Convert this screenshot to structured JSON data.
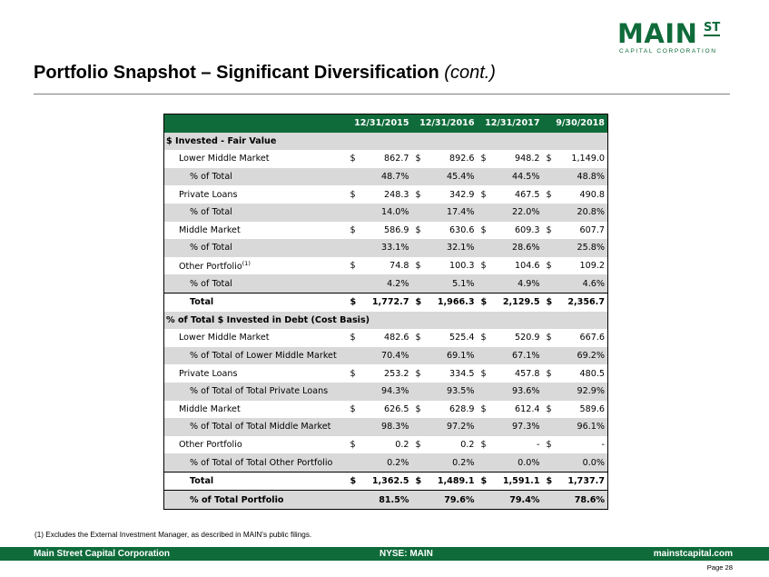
{
  "logo": {
    "main": "MAIN",
    "st": "ST",
    "sub": "CAPITAL CORPORATION"
  },
  "title": "Portfolio Snapshot – Significant Diversification",
  "title_suffix": "(cont.)",
  "table": {
    "headers": [
      "12/31/2015",
      "12/31/2016",
      "12/31/2017",
      "9/30/2018"
    ],
    "rows": [
      {
        "type": "sec",
        "label": "$ Invested - Fair Value"
      },
      {
        "type": "l1",
        "label": "Lower Middle Market",
        "cur": true,
        "values": [
          "862.7",
          "892.6",
          "948.2",
          "1,149.0"
        ]
      },
      {
        "type": "pct",
        "label": "% of Total",
        "values": [
          "48.7%",
          "45.4%",
          "44.5%",
          "48.8%"
        ]
      },
      {
        "type": "l1",
        "label": "Private Loans",
        "cur": true,
        "values": [
          "248.3",
          "342.9",
          "467.5",
          "490.8"
        ]
      },
      {
        "type": "pct",
        "label": "% of Total",
        "values": [
          "14.0%",
          "17.4%",
          "22.0%",
          "20.8%"
        ]
      },
      {
        "type": "l1",
        "label": "Middle Market",
        "cur": true,
        "values": [
          "586.9",
          "630.6",
          "609.3",
          "607.7"
        ]
      },
      {
        "type": "pct",
        "label": "% of Total",
        "values": [
          "33.1%",
          "32.1%",
          "28.6%",
          "25.8%"
        ]
      },
      {
        "type": "l1",
        "label": "Other Portfolio",
        "sup": "(1)",
        "cur": true,
        "values": [
          "74.8",
          "100.3",
          "104.6",
          "109.2"
        ]
      },
      {
        "type": "pct",
        "label": "% of Total",
        "values": [
          "4.2%",
          "5.1%",
          "4.9%",
          "4.6%"
        ]
      },
      {
        "type": "tot",
        "label": "Total",
        "cur": true,
        "values": [
          "1,772.7",
          "1,966.3",
          "2,129.5",
          "2,356.7"
        ]
      },
      {
        "type": "sec",
        "label": "% of Total $ Invested in Debt (Cost Basis)"
      },
      {
        "type": "l1",
        "label": "Lower Middle Market",
        "cur": true,
        "values": [
          "482.6",
          "525.4",
          "520.9",
          "667.6"
        ]
      },
      {
        "type": "pct",
        "label": "% of Total of Lower Middle Market",
        "values": [
          "70.4%",
          "69.1%",
          "67.1%",
          "69.2%"
        ]
      },
      {
        "type": "l1",
        "label": "Private Loans",
        "cur": true,
        "values": [
          "253.2",
          "334.5",
          "457.8",
          "480.5"
        ]
      },
      {
        "type": "pct",
        "label": "% of Total of Total Private Loans",
        "values": [
          "94.3%",
          "93.5%",
          "93.6%",
          "92.9%"
        ]
      },
      {
        "type": "l1",
        "label": "Middle Market",
        "cur": true,
        "values": [
          "626.5",
          "628.9",
          "612.4",
          "589.6"
        ]
      },
      {
        "type": "pct",
        "label": "% of Total of Total Middle Market",
        "values": [
          "98.3%",
          "97.2%",
          "97.3%",
          "96.1%"
        ]
      },
      {
        "type": "l1",
        "label": "Other Portfolio",
        "cur": true,
        "values": [
          "0.2",
          "0.2",
          "-",
          "-"
        ]
      },
      {
        "type": "pct",
        "label": "% of Total of Total Other Portfolio",
        "values": [
          "0.2%",
          "0.2%",
          "0.0%",
          "0.0%"
        ]
      },
      {
        "type": "tot",
        "label": "Total",
        "cur": true,
        "values": [
          "1,362.5",
          "1,489.1",
          "1,591.1",
          "1,737.7"
        ]
      },
      {
        "type": "gtot",
        "label": "% of Total Portfolio",
        "values": [
          "81.5%",
          "79.6%",
          "79.4%",
          "78.6%"
        ]
      }
    ],
    "currency_symbol": "$"
  },
  "footnote": "(1)    Excludes the External Investment Manager, as described in MAIN’s public filings.",
  "footer": {
    "left": "Main Street Capital Corporation",
    "center": "NYSE: MAIN",
    "right": "mainstcapital.com"
  },
  "page": "Page  28"
}
